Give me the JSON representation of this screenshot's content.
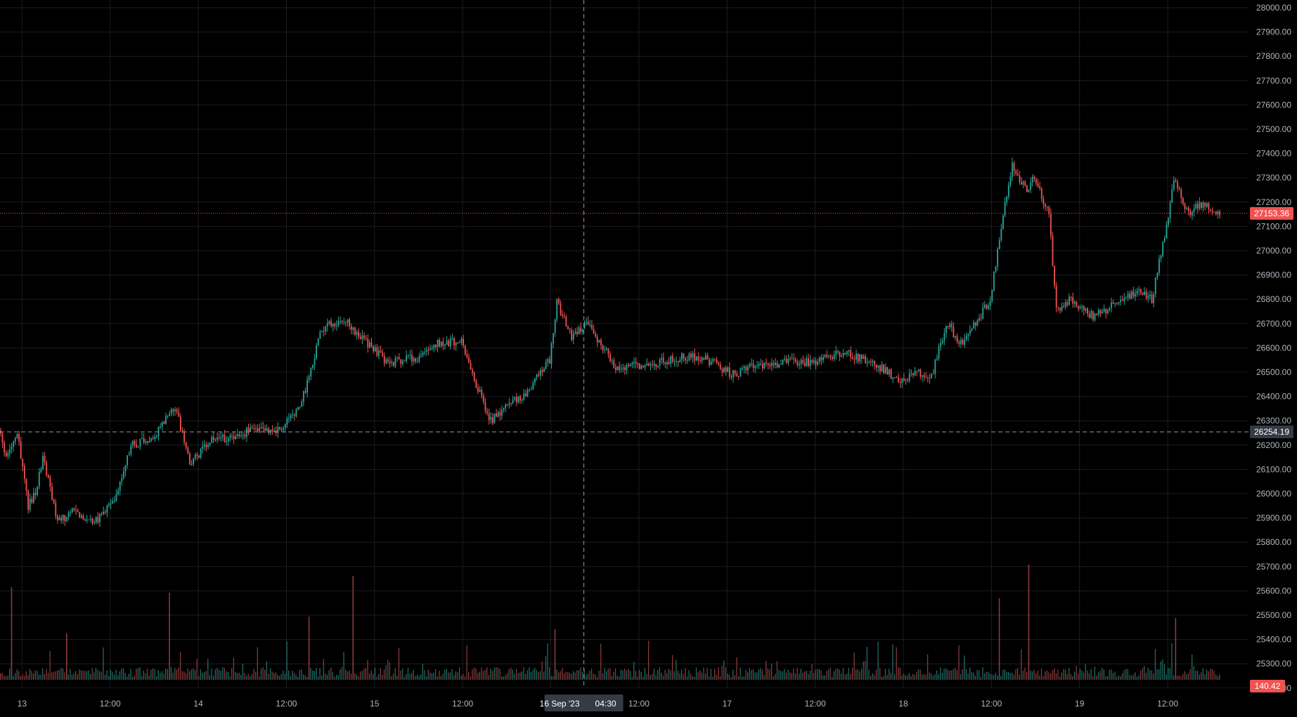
{
  "colors": {
    "background": "#000000",
    "grid": "#1c1c24",
    "axis_text": "#b2b5be",
    "up": "#26a69a",
    "down": "#ef5350",
    "up_volume": "#1f6f67",
    "down_volume": "#8a3b3a",
    "crosshair": "#9598a1",
    "last_price_line": "#f7525f",
    "label_bg": "#363a45"
  },
  "chart_data": {
    "type": "candlestick",
    "symbol": "",
    "title": "",
    "y_axis": {
      "scale": "linear",
      "range": [
        25000,
        28000
      ],
      "tick_labels": [
        "28000.00",
        "27900.00",
        "27800.00",
        "27700.00",
        "27600.00",
        "27500.00",
        "27400.00",
        "27300.00",
        "27200.00",
        "27100.00",
        "27000.00",
        "26900.00",
        "26800.00",
        "26700.00",
        "26600.00",
        "26500.00",
        "26400.00",
        "26300.00",
        "26200.00",
        "26100.00",
        "26000.00",
        "25900.00",
        "25800.00",
        "25700.00",
        "25600.00",
        "25500.00",
        "25400.00",
        "25300.00",
        "25200.00"
      ]
    },
    "x_axis": {
      "range_days": [
        "2023-09-12T21:00",
        "2023-09-19T23:00"
      ],
      "tick_labels": [
        {
          "t": "2023-09-13T00:00",
          "label": "13"
        },
        {
          "t": "2023-09-13T12:00",
          "label": "12:00"
        },
        {
          "t": "2023-09-14T00:00",
          "label": "14"
        },
        {
          "t": "2023-09-14T12:00",
          "label": "12:00"
        },
        {
          "t": "2023-09-15T00:00",
          "label": "15"
        },
        {
          "t": "2023-09-15T12:00",
          "label": "12:00"
        },
        {
          "t": "2023-09-16T12:00",
          "label": "12:00"
        },
        {
          "t": "2023-09-17T00:00",
          "label": "17"
        },
        {
          "t": "2023-09-17T12:00",
          "label": "12:00"
        },
        {
          "t": "2023-09-18T00:00",
          "label": "18"
        },
        {
          "t": "2023-09-18T12:00",
          "label": "12:00"
        },
        {
          "t": "2023-09-19T00:00",
          "label": "19"
        },
        {
          "t": "2023-09-19T12:00",
          "label": "12:00"
        }
      ]
    },
    "price_path": [
      [
        "2023-09-12T21:00",
        26260
      ],
      [
        "2023-09-12T22:00",
        26150
      ],
      [
        "2023-09-12T23:30",
        26250
      ],
      [
        "2023-09-13T01:00",
        25950
      ],
      [
        "2023-09-13T02:00",
        26000
      ],
      [
        "2023-09-13T03:00",
        26150
      ],
      [
        "2023-09-13T05:00",
        25880
      ],
      [
        "2023-09-13T07:00",
        25930
      ],
      [
        "2023-09-13T10:00",
        25880
      ],
      [
        "2023-09-13T12:00",
        25950
      ],
      [
        "2023-09-13T13:00",
        26000
      ],
      [
        "2023-09-13T15:00",
        26200
      ],
      [
        "2023-09-13T18:00",
        26230
      ],
      [
        "2023-09-13T21:00",
        26360
      ],
      [
        "2023-09-13T23:00",
        26120
      ],
      [
        "2023-09-14T02:00",
        26220
      ],
      [
        "2023-09-14T05:00",
        26230
      ],
      [
        "2023-09-14T08:00",
        26270
      ],
      [
        "2023-09-14T11:00",
        26260
      ],
      [
        "2023-09-14T14:00",
        26350
      ],
      [
        "2023-09-14T17:00",
        26680
      ],
      [
        "2023-09-14T20:00",
        26720
      ],
      [
        "2023-09-14T23:00",
        26620
      ],
      [
        "2023-09-15T02:00",
        26540
      ],
      [
        "2023-09-15T06:00",
        26560
      ],
      [
        "2023-09-15T09:00",
        26620
      ],
      [
        "2023-09-15T12:00",
        26630
      ],
      [
        "2023-09-15T14:00",
        26450
      ],
      [
        "2023-09-15T16:00",
        26300
      ],
      [
        "2023-09-15T18:00",
        26360
      ],
      [
        "2023-09-15T21:00",
        26420
      ],
      [
        "2023-09-16T00:00",
        26550
      ],
      [
        "2023-09-16T01:00",
        26790
      ],
      [
        "2023-09-16T03:00",
        26650
      ],
      [
        "2023-09-16T05:00",
        26700
      ],
      [
        "2023-09-16T07:00",
        26620
      ],
      [
        "2023-09-16T09:00",
        26520
      ],
      [
        "2023-09-16T12:00",
        26530
      ],
      [
        "2023-09-16T15:00",
        26540
      ],
      [
        "2023-09-16T18:00",
        26560
      ],
      [
        "2023-09-16T21:00",
        26560
      ],
      [
        "2023-09-17T01:00",
        26490
      ],
      [
        "2023-09-17T04:00",
        26530
      ],
      [
        "2023-09-17T08:00",
        26540
      ],
      [
        "2023-09-17T12:00",
        26540
      ],
      [
        "2023-09-17T16:00",
        26580
      ],
      [
        "2023-09-17T18:00",
        26560
      ],
      [
        "2023-09-17T21:00",
        26520
      ],
      [
        "2023-09-18T00:00",
        26460
      ],
      [
        "2023-09-18T02:00",
        26500
      ],
      [
        "2023-09-18T04:00",
        26480
      ],
      [
        "2023-09-18T06:00",
        26700
      ],
      [
        "2023-09-18T08:00",
        26620
      ],
      [
        "2023-09-18T10:00",
        26700
      ],
      [
        "2023-09-18T12:00",
        26800
      ],
      [
        "2023-09-18T14:00",
        27200
      ],
      [
        "2023-09-18T15:00",
        27350
      ],
      [
        "2023-09-18T17:00",
        27250
      ],
      [
        "2023-09-18T18:00",
        27300
      ],
      [
        "2023-09-18T20:00",
        27150
      ],
      [
        "2023-09-18T21:00",
        26750
      ],
      [
        "2023-09-18T23:00",
        26800
      ],
      [
        "2023-09-19T02:00",
        26730
      ],
      [
        "2023-09-19T05:00",
        26780
      ],
      [
        "2023-09-19T08:00",
        26830
      ],
      [
        "2023-09-19T10:00",
        26800
      ],
      [
        "2023-09-19T12:00",
        27100
      ],
      [
        "2023-09-19T13:00",
        27300
      ],
      [
        "2023-09-19T15:00",
        27150
      ],
      [
        "2023-09-19T17:00",
        27200
      ],
      [
        "2023-09-19T19:00",
        27153
      ]
    ],
    "volume_spikes": [
      [
        "2023-09-12T22:30",
        0.66
      ],
      [
        "2023-09-13T06:00",
        0.33
      ],
      [
        "2023-09-13T20:00",
        0.62
      ],
      [
        "2023-09-14T15:00",
        0.45
      ],
      [
        "2023-09-14T21:00",
        0.74
      ],
      [
        "2023-09-16T00:30",
        0.36
      ],
      [
        "2023-09-18T17:00",
        0.82
      ],
      [
        "2023-09-18T13:00",
        0.58
      ],
      [
        "2023-09-19T13:00",
        0.44
      ]
    ],
    "crosshair": {
      "price": 26254.19,
      "price_label": "26254.19",
      "time_label_date": "16 Sep '23",
      "time_label_time": "04:30",
      "t": "2023-09-16T04:30"
    },
    "last_price": {
      "value": 27153.36,
      "label": "27153.36"
    },
    "last_volume": {
      "label": "140.42"
    }
  }
}
